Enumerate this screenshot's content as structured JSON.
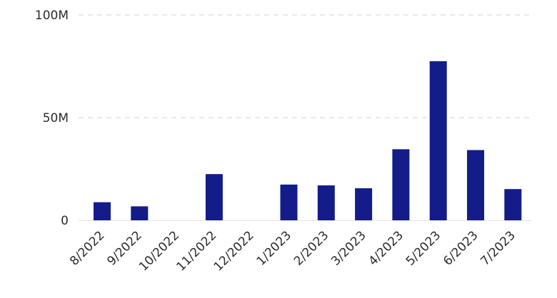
{
  "chart_data": {
    "type": "bar",
    "categories": [
      "8/2022",
      "9/2022",
      "10/2022",
      "11/2022",
      "12/2022",
      "1/2023",
      "2/2023",
      "3/2023",
      "4/2023",
      "5/2023",
      "6/2023",
      "7/2023"
    ],
    "values": [
      8.8,
      6.8,
      0,
      22.5,
      0,
      17.4,
      17.0,
      15.6,
      34.6,
      77.5,
      34.2,
      15.2
    ],
    "value_unit": "millions",
    "yticks": [
      0,
      50,
      100
    ],
    "ytick_labels": [
      "0",
      "50M",
      "100M"
    ],
    "ylim": [
      0,
      100
    ],
    "title": "",
    "xlabel": "",
    "ylabel": "",
    "grid": true,
    "legend": "none",
    "bar_color": "#131c88",
    "grid_color": "#dcdcdc"
  }
}
